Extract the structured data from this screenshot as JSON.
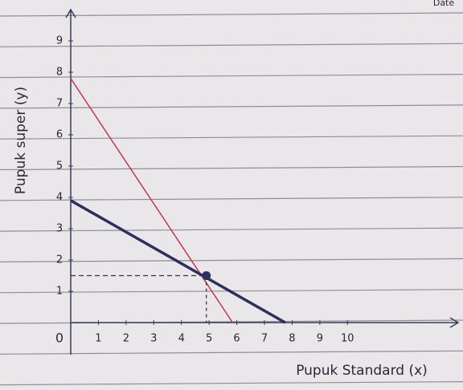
{
  "header": {
    "date": "Date"
  },
  "chart_data": {
    "type": "line",
    "xlabel": "Pupuk Standard (x)",
    "ylabel": "Pupuk super (y)",
    "xlim": [
      0,
      14
    ],
    "ylim": [
      0,
      10
    ],
    "xticks": [
      0,
      1,
      2,
      3,
      4,
      5,
      6,
      7,
      8,
      9,
      10
    ],
    "yticks": [
      1,
      2,
      3,
      4,
      5,
      6,
      7,
      8,
      9
    ],
    "series": [
      {
        "color": "#c0394f",
        "x": [
          0,
          5.85
        ],
        "values": [
          7.8,
          0
        ]
      },
      {
        "color": "#2f2f5e",
        "x": [
          0,
          7.75
        ],
        "values": [
          3.9,
          0
        ]
      }
    ],
    "point": {
      "x": 4.9,
      "y": 1.5,
      "color": "#2f2f5e"
    }
  }
}
